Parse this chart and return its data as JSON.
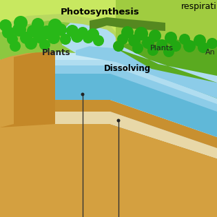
{
  "sky_top": "#c5e8f5",
  "sky_bottom": "#ddf4fc",
  "green_bg": "#b8d860",
  "green_mid": "#8cc840",
  "green_dark": "#5aaa20",
  "green_hill_light": "#c8e860",
  "green_hill_mid": "#a0cc40",
  "water_deep": "#60b8d8",
  "water_mid": "#8ccce8",
  "water_light": "#b0ddf0",
  "water_surface": "#c8eaf8",
  "soil_brown": "#d4a040",
  "soil_brown2": "#c89030",
  "soil_cream": "#e8d8a8",
  "soil_cream2": "#f0e4c0",
  "arrow_color": "#cc0072",
  "tree_green": "#22aa10",
  "tree_green2": "#2ec015",
  "tree_trunk": "#8B4513",
  "label_photo": "Photosynthesis",
  "label_plants_l": "Plants",
  "label_plants_r": "Plants",
  "label_an": "An",
  "label_dissolving": "Dissolving",
  "label_respiration": "respirati"
}
